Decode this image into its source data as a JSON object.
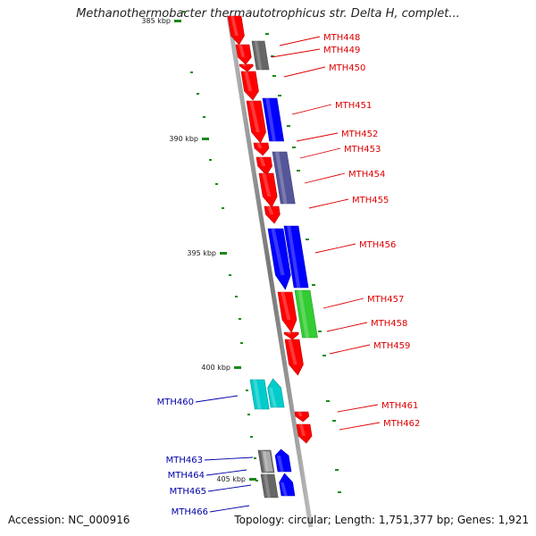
{
  "title": "Methanothermobacter thermautotrophicus str. Delta H, complet...",
  "footer": {
    "accession": "Accession: NC_000916",
    "summary": "Topology: circular; Length: 1,751,377 bp; Genes: 1,921"
  },
  "colors": {
    "forward_label": "#dd0000",
    "reverse_label": "#0000aa",
    "backbone": "#888888",
    "tick": "#1a8a1a"
  },
  "scale_labels": [
    "385 kbp",
    "390 kbp",
    "395 kbp",
    "400 kbp",
    "405 kbp"
  ],
  "genes": [
    {
      "name": "MTH448",
      "strand": "forward",
      "color": "#ff0000"
    },
    {
      "name": "MTH449",
      "strand": "forward",
      "color": "#666666"
    },
    {
      "name": "MTH450",
      "strand": "forward",
      "color": "#ff0000"
    },
    {
      "name": "MTH451",
      "strand": "forward",
      "color": "#0000ff"
    },
    {
      "name": "MTH452",
      "strand": "forward",
      "color": "#ff0000"
    },
    {
      "name": "MTH453",
      "strand": "forward",
      "color": "#ff0000"
    },
    {
      "name": "MTH454",
      "strand": "forward",
      "color": "#555599"
    },
    {
      "name": "MTH455",
      "strand": "forward",
      "color": "#ff0000"
    },
    {
      "name": "MTH456",
      "strand": "forward",
      "color": "#0000ff"
    },
    {
      "name": "MTH457",
      "strand": "forward",
      "color": "#33cc33"
    },
    {
      "name": "MTH458",
      "strand": "forward",
      "color": "#ff0000"
    },
    {
      "name": "MTH459",
      "strand": "forward",
      "color": "#ff0000"
    },
    {
      "name": "MTH460",
      "strand": "reverse",
      "color": "#00cccc"
    },
    {
      "name": "MTH461",
      "strand": "forward",
      "color": "#ff0000"
    },
    {
      "name": "MTH462",
      "strand": "forward",
      "color": "#ff0000"
    },
    {
      "name": "MTH463",
      "strand": "reverse",
      "color": "#666666"
    },
    {
      "name": "MTH464",
      "strand": "reverse",
      "color": "#aaaaaa"
    },
    {
      "name": "MTH465",
      "strand": "reverse",
      "color": "#666666"
    },
    {
      "name": "MTH466",
      "strand": "reverse",
      "color": "#0000ff"
    }
  ]
}
